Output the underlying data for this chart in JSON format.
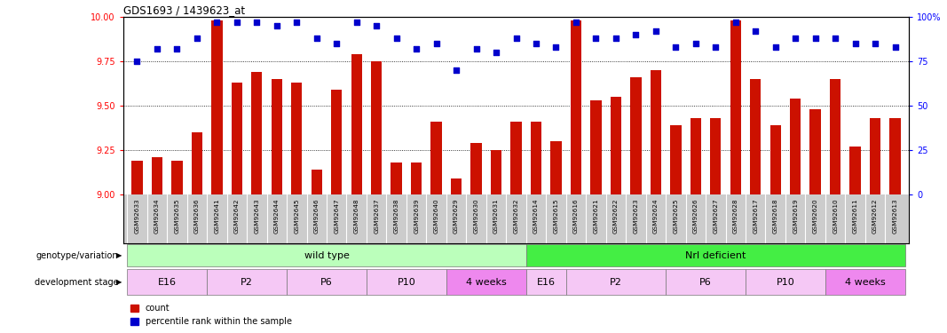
{
  "title": "GDS1693 / 1439623_at",
  "samples": [
    "GSM92633",
    "GSM92634",
    "GSM92635",
    "GSM92636",
    "GSM92641",
    "GSM92642",
    "GSM92643",
    "GSM92644",
    "GSM92645",
    "GSM92646",
    "GSM92647",
    "GSM92648",
    "GSM92637",
    "GSM92638",
    "GSM92639",
    "GSM92640",
    "GSM92629",
    "GSM92630",
    "GSM92631",
    "GSM92632",
    "GSM92614",
    "GSM92615",
    "GSM92616",
    "GSM92621",
    "GSM92622",
    "GSM92623",
    "GSM92624",
    "GSM92625",
    "GSM92626",
    "GSM92627",
    "GSM92628",
    "GSM92617",
    "GSM92618",
    "GSM92619",
    "GSM92620",
    "GSM92610",
    "GSM92611",
    "GSM92612",
    "GSM92613"
  ],
  "counts": [
    9.19,
    9.21,
    9.19,
    9.35,
    9.98,
    9.63,
    9.69,
    9.65,
    9.63,
    9.14,
    9.59,
    9.79,
    9.75,
    9.18,
    9.18,
    9.41,
    9.09,
    9.29,
    9.25,
    9.41,
    9.41,
    9.3,
    9.98,
    9.53,
    9.55,
    9.66,
    9.7,
    9.39,
    9.43,
    9.43,
    9.98,
    9.65,
    9.39,
    9.54,
    9.48,
    9.65,
    9.27,
    9.43,
    9.43
  ],
  "percentile": [
    75,
    82,
    82,
    88,
    97,
    97,
    97,
    95,
    97,
    88,
    85,
    97,
    95,
    88,
    82,
    85,
    70,
    82,
    80,
    88,
    85,
    83,
    97,
    88,
    88,
    90,
    92,
    83,
    85,
    83,
    97,
    92,
    83,
    88,
    88,
    88,
    85,
    85,
    83
  ],
  "ylim_left": [
    9.0,
    10.0
  ],
  "ylim_right": [
    0,
    100
  ],
  "yticks_left": [
    9.0,
    9.25,
    9.5,
    9.75,
    10.0
  ],
  "yticks_right": [
    0,
    25,
    50,
    75,
    100
  ],
  "bar_color": "#cc1100",
  "dot_color": "#0000cc",
  "bg_color": "#ffffff",
  "grid_color": "#000000",
  "label_bg_color": "#cccccc",
  "genotype_groups": [
    {
      "label": "wild type",
      "start": 0,
      "end": 20,
      "color": "#bbffbb"
    },
    {
      "label": "Nrl deficient",
      "start": 20,
      "end": 39,
      "color": "#44ee44"
    }
  ],
  "stage_groups": [
    {
      "label": "E16",
      "start": 0,
      "end": 4
    },
    {
      "label": "P2",
      "start": 4,
      "end": 8
    },
    {
      "label": "P6",
      "start": 8,
      "end": 12
    },
    {
      "label": "P10",
      "start": 12,
      "end": 16
    },
    {
      "label": "4 weeks",
      "start": 16,
      "end": 20
    },
    {
      "label": "E16",
      "start": 20,
      "end": 22
    },
    {
      "label": "P2",
      "start": 22,
      "end": 27
    },
    {
      "label": "P6",
      "start": 27,
      "end": 31
    },
    {
      "label": "P10",
      "start": 31,
      "end": 35
    },
    {
      "label": "4 weeks",
      "start": 35,
      "end": 39
    }
  ],
  "stage_colors": {
    "E16": "#f5c8f5",
    "P2": "#f5c8f5",
    "P6": "#f5c8f5",
    "P10": "#f5c8f5",
    "4 weeks": "#ee88ee"
  }
}
